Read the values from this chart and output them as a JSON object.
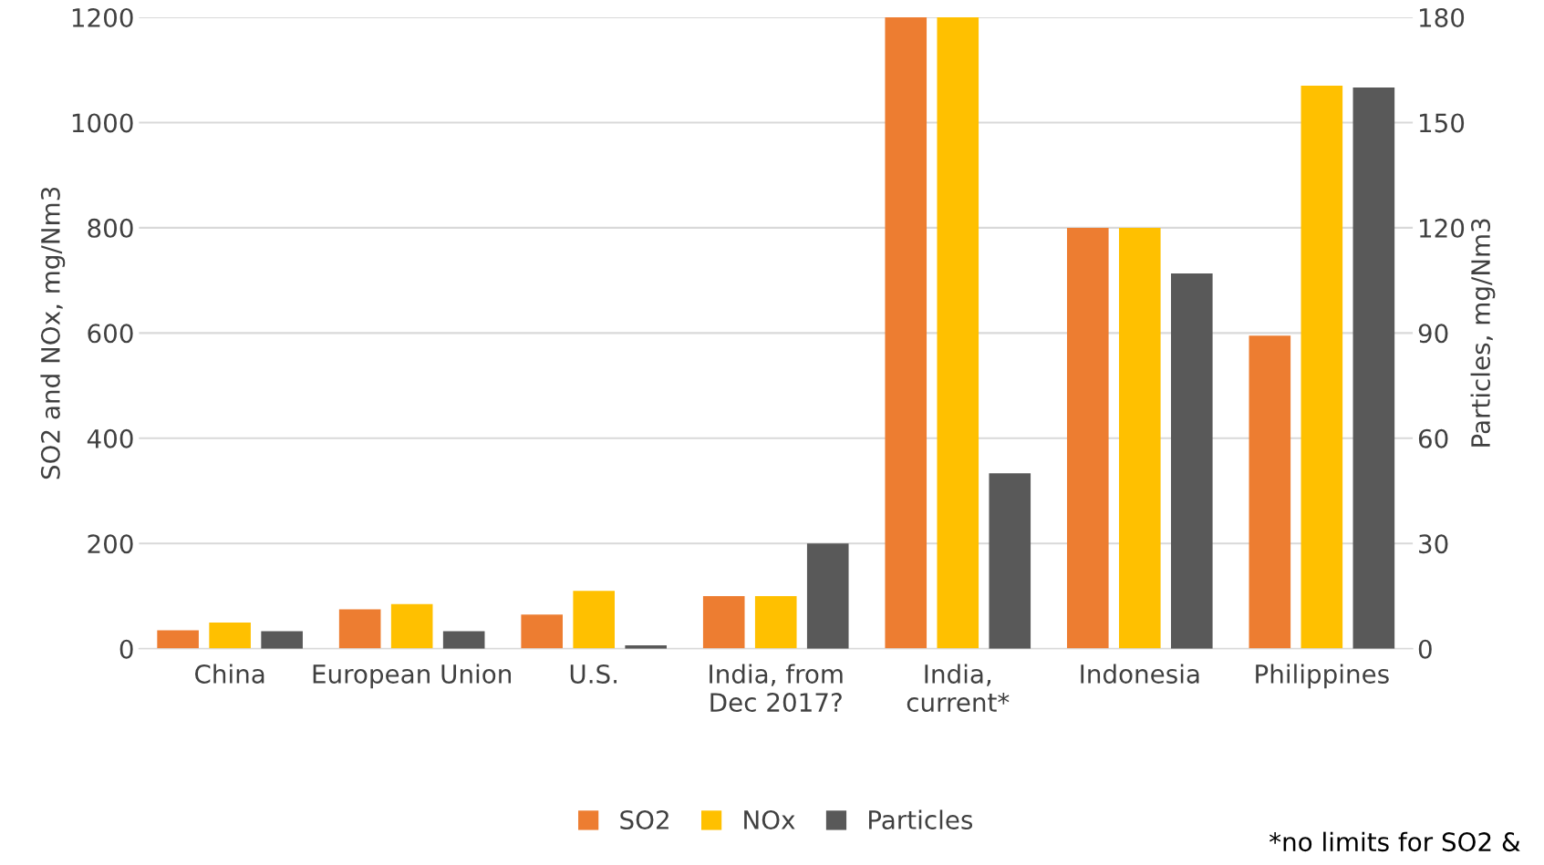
{
  "chart_data": {
    "type": "bar",
    "categories": [
      "China",
      "European Union",
      "U.S.",
      "India, from Dec 2017?",
      "India, current*",
      "Indonesia",
      "Philippines"
    ],
    "series": [
      {
        "name": "SO2",
        "color": "#ed7d31",
        "values": [
          35,
          75,
          65,
          100,
          1200,
          800,
          595
        ]
      },
      {
        "name": "NOx",
        "color": "#ffc000",
        "values": [
          50,
          85,
          110,
          100,
          1200,
          800,
          1070
        ]
      },
      {
        "name": "Particles",
        "color": "#595959",
        "axis": "y2",
        "values": [
          5,
          5,
          1,
          30,
          50,
          107,
          160
        ]
      }
    ],
    "ylabel": "SO2 and NOx, mg/Nm3",
    "y2label": "Particles, mg/Nm3",
    "ylim": [
      0,
      1200
    ],
    "yticks": [
      0,
      200,
      400,
      600,
      800,
      1000,
      1200
    ],
    "y2lim": [
      0,
      180
    ],
    "y2ticks": [
      0,
      30,
      60,
      90,
      120,
      150,
      180
    ],
    "grid": "y",
    "legend": "bottom",
    "annotations": [
      "*no limits for SO2 &"
    ]
  }
}
